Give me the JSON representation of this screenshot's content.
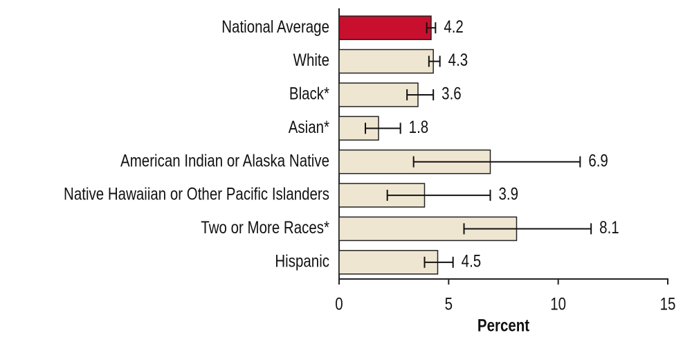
{
  "chart_data": {
    "type": "bar",
    "orientation": "horizontal",
    "categories": [
      "National Average",
      "White",
      "Black*",
      "Asian*",
      "American Indian or Alaska Native",
      "Native Hawaiian or Other Pacific Islanders",
      "Two or More Races*",
      "Hispanic"
    ],
    "values": [
      4.2,
      4.3,
      3.6,
      1.8,
      6.9,
      3.9,
      8.1,
      4.5
    ],
    "error_low": [
      4.0,
      4.1,
      3.1,
      1.2,
      3.4,
      2.2,
      5.7,
      3.9
    ],
    "error_high": [
      4.4,
      4.6,
      4.3,
      2.8,
      11.0,
      6.9,
      11.5,
      5.2
    ],
    "colors": [
      "#c8102e",
      "#efe6d2",
      "#efe6d2",
      "#efe6d2",
      "#efe6d2",
      "#efe6d2",
      "#efe6d2",
      "#efe6d2"
    ],
    "xlabel": "Percent",
    "xlim": [
      0,
      15
    ],
    "xticks": [
      0,
      5,
      10,
      15
    ],
    "grid": false
  }
}
